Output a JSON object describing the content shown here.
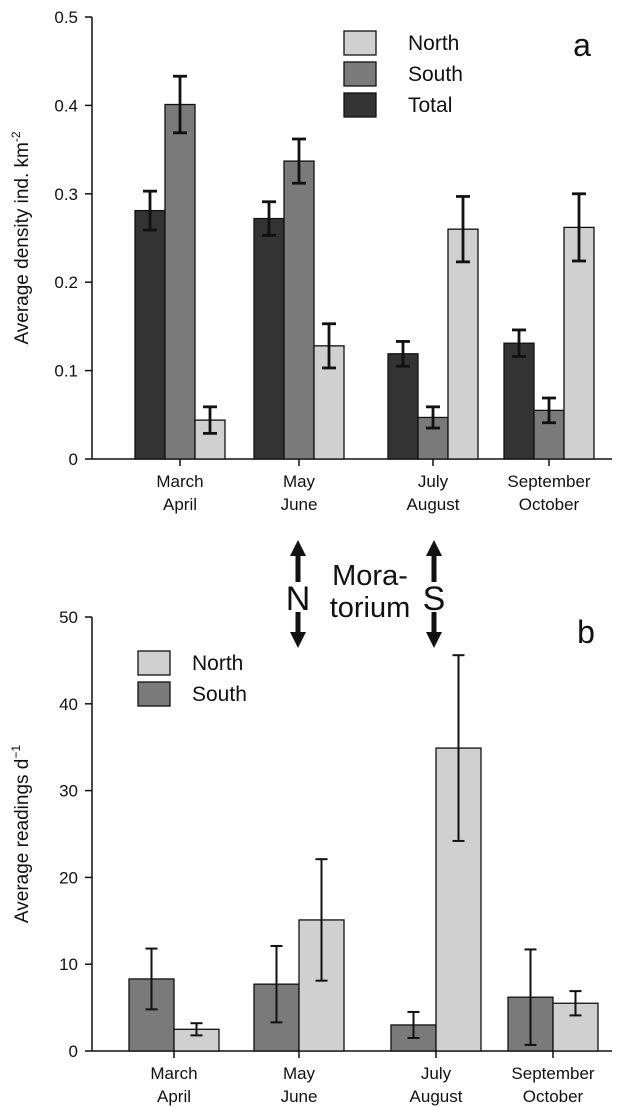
{
  "chart_data": [
    {
      "panel_label": "a",
      "type": "bar",
      "ylabel": "Average density ind. km",
      "ylabel_superscript": "-2",
      "ylim": [
        0,
        0.5
      ],
      "yticks": [
        "0",
        "0.1",
        "0.2",
        "0.3",
        "0.4",
        "0.5"
      ],
      "categories": [
        {
          "line1": "March",
          "line2": "April"
        },
        {
          "line1": "May",
          "line2": "June"
        },
        {
          "line1": "July",
          "line2": "August"
        },
        {
          "line1": "September",
          "line2": "October"
        }
      ],
      "series": [
        {
          "name": "Total",
          "color": "#333333",
          "values": [
            0.281,
            0.272,
            0.119,
            0.131
          ],
          "err": [
            0.022,
            0.019,
            0.014,
            0.015
          ]
        },
        {
          "name": "South",
          "color": "#7a7a7a",
          "values": [
            0.401,
            0.337,
            0.047,
            0.055
          ],
          "err": [
            0.032,
            0.025,
            0.012,
            0.014
          ]
        },
        {
          "name": "North",
          "color": "#d0d0d0",
          "values": [
            0.044,
            0.128,
            0.26,
            0.262
          ],
          "err": [
            0.015,
            0.025,
            0.037,
            0.038
          ]
        }
      ],
      "legend": [
        {
          "name": "North",
          "color": "#d0d0d0"
        },
        {
          "name": "South",
          "color": "#7a7a7a"
        },
        {
          "name": "Total",
          "color": "#333333"
        }
      ],
      "legend_position": "top-right",
      "grid": false
    },
    {
      "panel_label": "b",
      "type": "bar",
      "ylabel": "Average readings d",
      "ylabel_superscript": "−1",
      "ylim": [
        0,
        50
      ],
      "yticks": [
        "0",
        "10",
        "20",
        "30",
        "40",
        "50"
      ],
      "categories": [
        {
          "line1": "March",
          "line2": "April"
        },
        {
          "line1": "May",
          "line2": "June"
        },
        {
          "line1": "July",
          "line2": "August"
        },
        {
          "line1": "September",
          "line2": "October"
        }
      ],
      "series": [
        {
          "name": "South",
          "color": "#7a7a7a",
          "values": [
            8.3,
            7.7,
            3.0,
            6.2
          ],
          "err": [
            3.5,
            4.4,
            1.5,
            5.5
          ]
        },
        {
          "name": "North",
          "color": "#d0d0d0",
          "values": [
            2.5,
            15.1,
            34.9,
            5.5
          ],
          "err": [
            0.7,
            7.0,
            10.7,
            1.4
          ]
        }
      ],
      "legend": [
        {
          "name": "North",
          "color": "#d0d0d0"
        },
        {
          "name": "South",
          "color": "#7a7a7a"
        }
      ],
      "legend_position": "top-left",
      "grid": false
    }
  ],
  "annotation": {
    "north_letter": "N",
    "south_letter": "S",
    "moratorium_line1": "Mora-",
    "moratorium_line2": "torium"
  }
}
